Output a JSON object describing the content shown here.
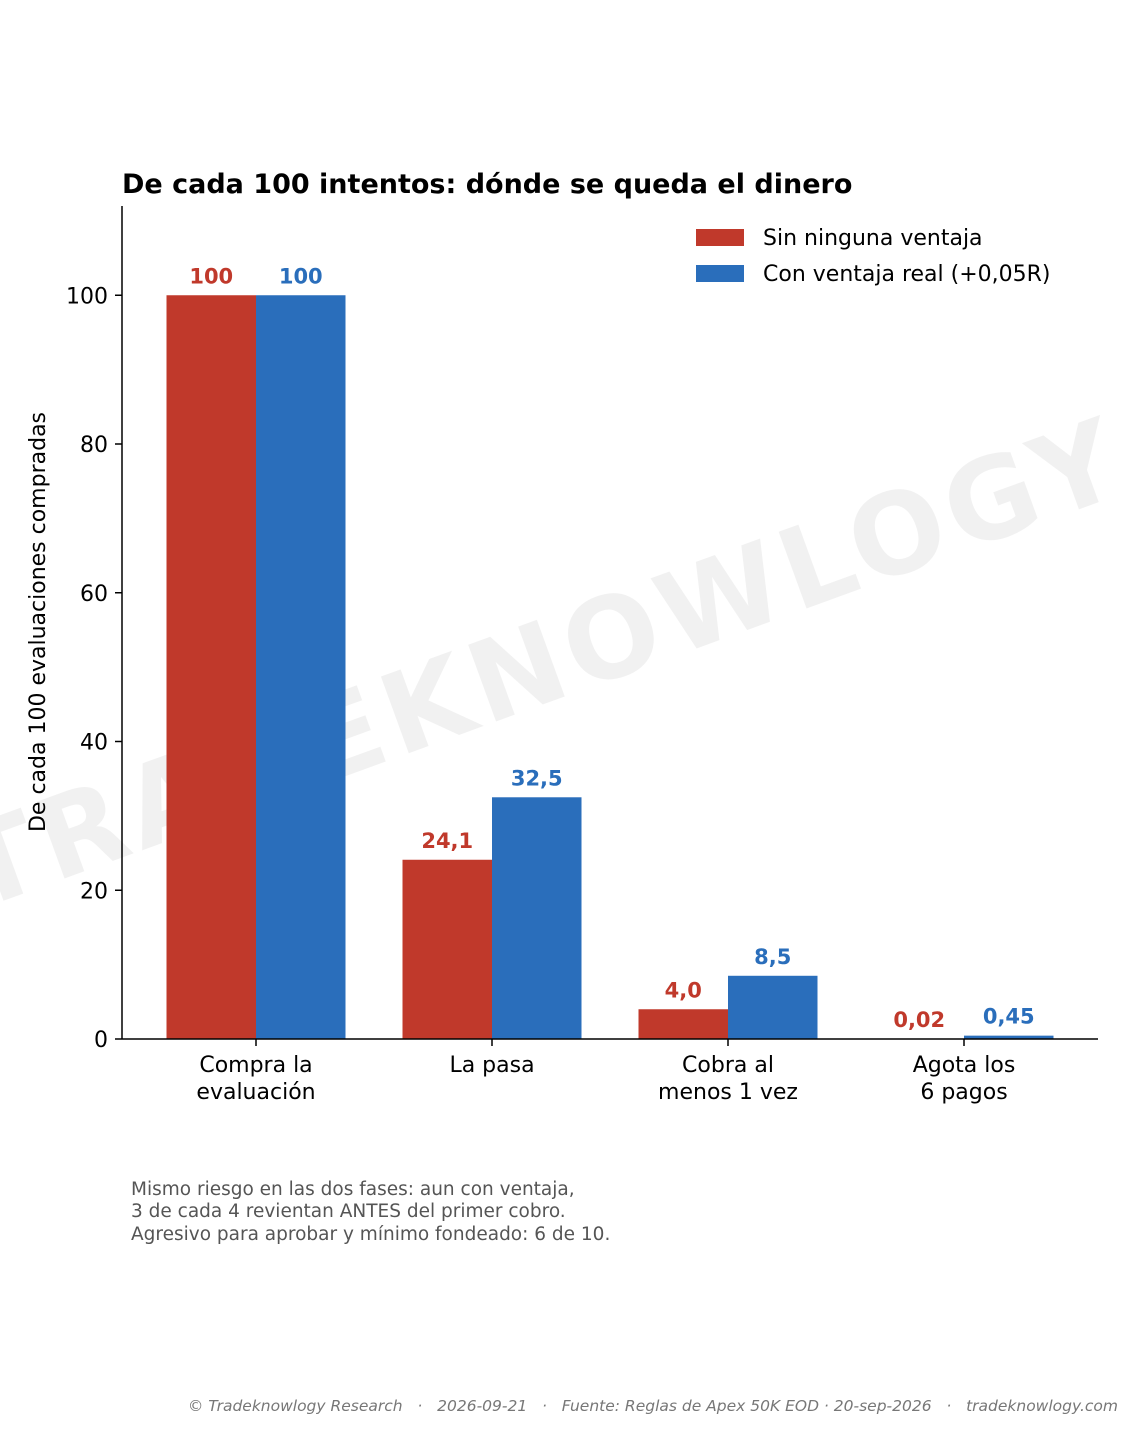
{
  "chart_data": {
    "type": "bar",
    "title": "De cada 100 intentos: dónde se queda el dinero",
    "ylabel": "De cada 100 evaluaciones compradas",
    "xlabel": "",
    "ylim": [
      0,
      112
    ],
    "yticks": [
      0,
      20,
      40,
      60,
      80,
      100
    ],
    "grid": false,
    "legend_position": "top-right",
    "categories": [
      [
        "Compra la",
        "evaluación"
      ],
      [
        "La pasa"
      ],
      [
        "Cobra al",
        "menos 1 vez"
      ],
      [
        "Agota los",
        "6 pagos"
      ]
    ],
    "series": [
      {
        "name": "Sin ninguna ventaja",
        "color": "#c0392b",
        "values": [
          100,
          24.1,
          4.0,
          0.02
        ],
        "labels": [
          "100",
          "24,1",
          "4,0",
          "0,02"
        ]
      },
      {
        "name": "Con ventaja real (+0,05R)",
        "color": "#2a6ebb",
        "values": [
          100,
          32.5,
          8.5,
          0.45
        ],
        "labels": [
          "100",
          "32,5",
          "8,5",
          "0,45"
        ]
      }
    ]
  },
  "watermark": "TRADEKNOWLOGY",
  "note_lines": [
    "Mismo riesgo en las dos fases: aun con ventaja,",
    "3 de cada 4 revientan ANTES del primer cobro.",
    "Agresivo para aprobar y mínimo fondeado: 6 de 10."
  ],
  "footer": "© Tradeknowlogy Research   ·   2026-09-21   ·   Fuente: Reglas de Apex 50K EOD · 20-sep-2026   ·   tradeknowlogy.com"
}
